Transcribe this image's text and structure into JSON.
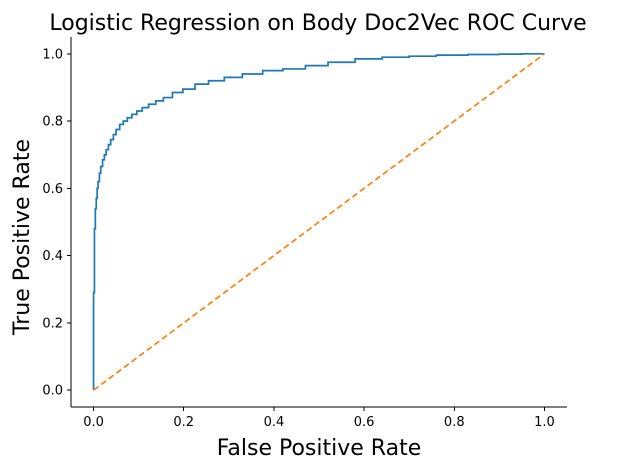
{
  "chart_data": {
    "type": "line",
    "title": "Logistic Regression on Body Doc2Vec ROC Curve",
    "xlabel": "False Positive Rate",
    "ylabel": "True Positive Rate",
    "xlim": [
      -0.05,
      1.05
    ],
    "ylim": [
      -0.05,
      1.05
    ],
    "xticks": [
      "0.0",
      "0.2",
      "0.4",
      "0.6",
      "0.8",
      "1.0"
    ],
    "yticks": [
      "0.0",
      "0.2",
      "0.4",
      "0.6",
      "0.8",
      "1.0"
    ],
    "grid": false,
    "legend": "none",
    "series": [
      {
        "color": "#1f77b4",
        "style": "solid",
        "step": true,
        "x": [
          0.0,
          0.0,
          0.002,
          0.002,
          0.004,
          0.006,
          0.008,
          0.01,
          0.013,
          0.016,
          0.02,
          0.024,
          0.028,
          0.033,
          0.038,
          0.044,
          0.05,
          0.058,
          0.066,
          0.075,
          0.085,
          0.096,
          0.108,
          0.122,
          0.138,
          0.155,
          0.175,
          0.198,
          0.225,
          0.255,
          0.29,
          0.33,
          0.375,
          0.42,
          0.47,
          0.52,
          0.58,
          0.64,
          0.7,
          0.76,
          0.83,
          0.9,
          0.95,
          1.0
        ],
        "y": [
          0.0,
          0.29,
          0.42,
          0.48,
          0.54,
          0.57,
          0.6,
          0.62,
          0.645,
          0.665,
          0.685,
          0.7,
          0.715,
          0.73,
          0.745,
          0.76,
          0.775,
          0.79,
          0.8,
          0.81,
          0.82,
          0.83,
          0.84,
          0.85,
          0.86,
          0.87,
          0.885,
          0.895,
          0.91,
          0.92,
          0.93,
          0.94,
          0.95,
          0.955,
          0.965,
          0.975,
          0.985,
          0.99,
          0.993,
          0.996,
          0.998,
          0.999,
          1.0,
          1.0
        ]
      },
      {
        "color": "#ff7f0e",
        "style": "dashed",
        "step": false,
        "x": [
          0.0,
          1.0
        ],
        "y": [
          0.0,
          1.0
        ]
      }
    ]
  }
}
